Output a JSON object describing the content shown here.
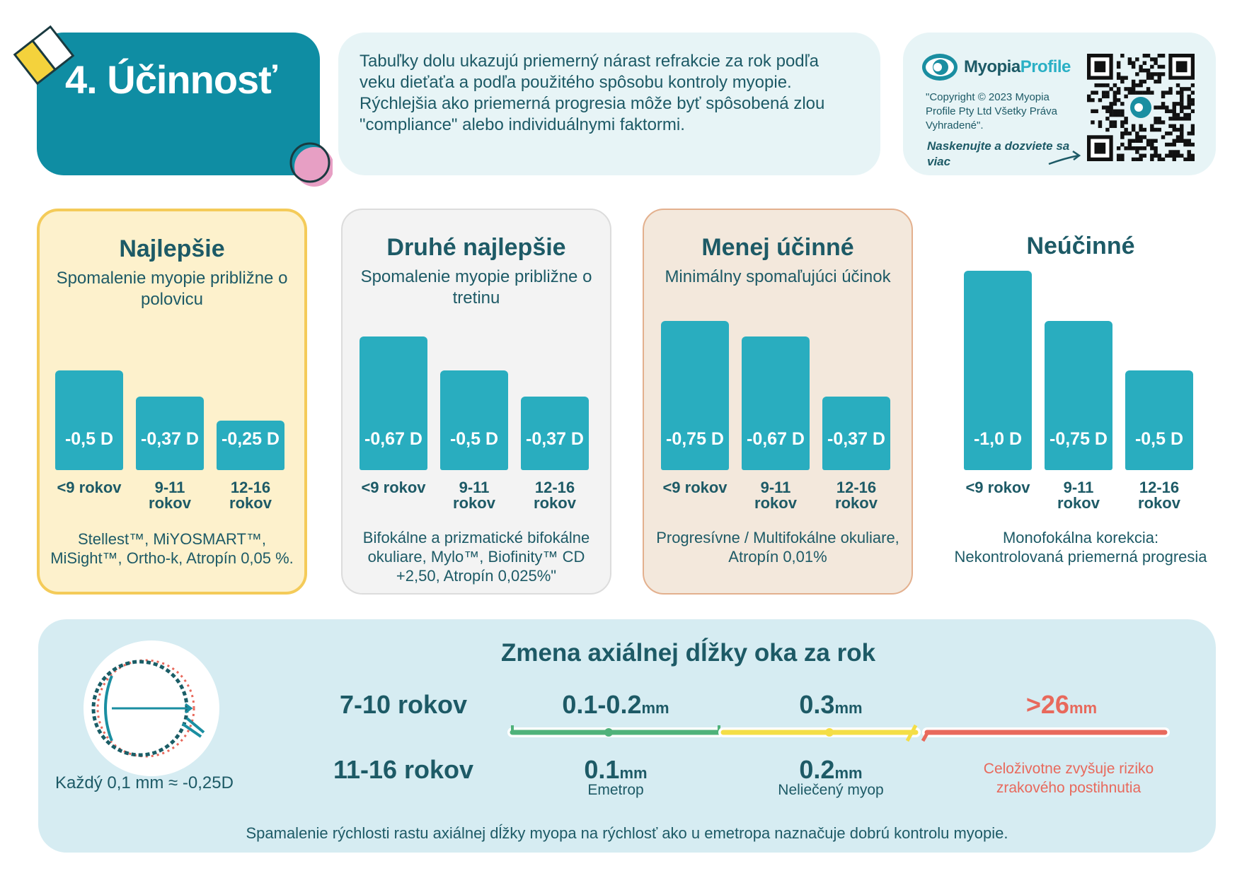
{
  "header": {
    "title": "4. Účinnosť",
    "intro": "Tabuľky dolu ukazujú priemerný nárast refrakcie za rok podľa veku dieťaťa a podľa použitého spôsobu kontroly myopie. Rýchlejšia ako priemerná progresia môže byť spôsobená zlou \"compliance\" alebo individuálnymi faktormi."
  },
  "brand": {
    "name_part1": "Myopia",
    "name_part2": "Profile",
    "copyright": "\"Copyright © 2023 Myopia Profile Pty Ltd Všetky Práva Vyhradené\".",
    "scan": "Naskenujte a dozviete sa viac"
  },
  "chart_data": {
    "type": "bar",
    "categories": [
      "<9 rokov",
      "9-11 rokov",
      "12-16 rokov"
    ],
    "unit": "D",
    "series": [
      {
        "name": "Najlepšie",
        "subtitle": "Spomalenie myopie približne o polovicu",
        "values": [
          -0.5,
          -0.37,
          -0.25
        ],
        "value_labels": [
          "-0,5 D",
          "-0,37 D",
          "-0,25 D"
        ],
        "note": "Stellest™, MiYOSMART™, MiSight™, Ortho-k, Atropín 0,05 %."
      },
      {
        "name": "Druhé najlepšie",
        "subtitle": "Spomalenie myopie približne o tretinu",
        "values": [
          -0.67,
          -0.5,
          -0.37
        ],
        "value_labels": [
          "-0,67 D",
          "-0,5 D",
          "-0,37 D"
        ],
        "note": "Bifokálne a prizmatické bifokálne okuliare, Mylo™, Biofinity™ CD +2,50, Atropín 0,025%\""
      },
      {
        "name": "Menej účinné",
        "subtitle": "Minimálny spomaľujúci účinok",
        "values": [
          -0.75,
          -0.67,
          -0.37
        ],
        "value_labels": [
          "-0,75 D",
          "-0,67 D",
          "-0,37 D"
        ],
        "note": "Progresívne / Multifokálne okuliare, Atropín 0,01%"
      },
      {
        "name": "Neúčinné",
        "subtitle": "",
        "values": [
          -1.0,
          -0.75,
          -0.5
        ],
        "value_labels": [
          "-1,0 D",
          "-0,75 D",
          "-0,5 D"
        ],
        "note": "Monofokálna korekcia: Nekontrolovaná priemerná progresia"
      }
    ],
    "age_labels": [
      [
        "<9 rokov"
      ],
      [
        "9-11",
        "rokov"
      ],
      [
        "12-16",
        "rokov"
      ]
    ]
  },
  "axial": {
    "title": "Zmena axiálnej dĺžky oka za rok",
    "eye_caption": "Každý 0,1 mm ≈ -0,25D",
    "rows": [
      {
        "age": "7-10 rokov",
        "v1": "0.1-0.2",
        "v2": "0.3",
        "v3": ">26"
      },
      {
        "age": "11-16 rokov",
        "v1": "0.1",
        "v1_sub": "Emetrop",
        "v2": "0.2",
        "v2_sub": "Neliečený myop"
      }
    ],
    "unit": "mm",
    "risk_note": "Celoživotne zvyšuje riziko zrakového postihnutia",
    "footer": "Spamalenie rýchlosti rastu axiálnej dĺžky myopa na rýchlosť ako u emetropa naznačuje dobrú kontrolu myopie.",
    "colors": {
      "green": "#4fb27a",
      "yellow": "#f4de46",
      "red": "#e8695c"
    }
  }
}
